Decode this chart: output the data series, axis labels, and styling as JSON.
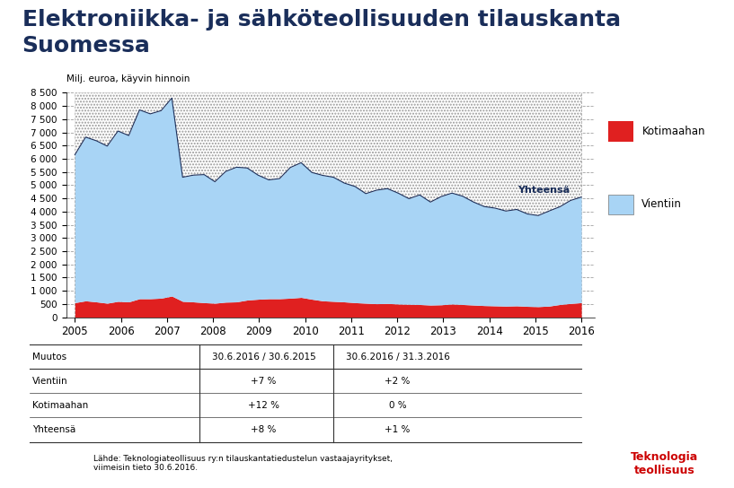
{
  "title_line1": "Elektroniikka- ja sähköteollisuuden tilauskanta",
  "title_line2": "Suomessa",
  "title_color": "#1a2e5a",
  "subtitle": "Milj. euroa, käyvin hinnoin",
  "background_color": "#ffffff",
  "yhteensa_label": "Yhteensä",
  "legend_kotimaahan": "Kotimaahan",
  "legend_vientiin": "Vientiin",
  "color_vientiin": "#a8d4f5",
  "color_kotimaahan": "#e02020",
  "ylim": [
    0,
    8500
  ],
  "yticks": [
    0,
    500,
    1000,
    1500,
    2000,
    2500,
    3000,
    3500,
    4000,
    4500,
    5000,
    5500,
    6000,
    6500,
    7000,
    7500,
    8000,
    8500
  ],
  "x_labels": [
    "2005",
    "2006",
    "2007",
    "2008",
    "2009",
    "2010",
    "2011",
    "2012",
    "2013",
    "2014",
    "2015",
    "2016"
  ],
  "table_col1": "Muutos",
  "table_col2": "30.6.2016 / 30.6.2015",
  "table_col3": "30.6.2016 / 31.3.2016",
  "table_rows": [
    [
      "Vientiin",
      "+7 %",
      "+2 %"
    ],
    [
      "Kotimaahan",
      "+12 %",
      "0 %"
    ],
    [
      "Yhteensä",
      "+8 %",
      "+1 %"
    ]
  ],
  "source_text": "Lähde: Teknologiateollisuus ry:n tilauskantatiedustelun vastaajayritykset,\nviimeisin tieto 30.6.2016.",
  "teknologia_text": "Teknologia\nteollisuus",
  "teknologia_color": "#cc0000",
  "vientiin_data": [
    5600,
    6200,
    6100,
    5950,
    6450,
    6300,
    7150,
    7000,
    7100,
    7500,
    4700,
    4800,
    4850,
    4600,
    4950,
    5100,
    5000,
    4700,
    4500,
    4550,
    4950,
    5100,
    4800,
    4750,
    4700,
    4500,
    4400,
    4150,
    4300,
    4350,
    4200,
    4000,
    4150,
    3900,
    4100,
    4200,
    4100,
    3900,
    3750,
    3700,
    3600,
    3650,
    3500,
    3450,
    3600,
    3700,
    3900,
    4000
  ],
  "kotimaahan_data": [
    550,
    620,
    580,
    530,
    600,
    580,
    700,
    700,
    720,
    800,
    600,
    580,
    550,
    530,
    570,
    580,
    650,
    680,
    700,
    700,
    720,
    750,
    680,
    620,
    600,
    580,
    550,
    530,
    510,
    520,
    500,
    490,
    480,
    460,
    470,
    500,
    480,
    460,
    440,
    430,
    420,
    430,
    410,
    400,
    420,
    480,
    520,
    550
  ],
  "n_points": 48
}
